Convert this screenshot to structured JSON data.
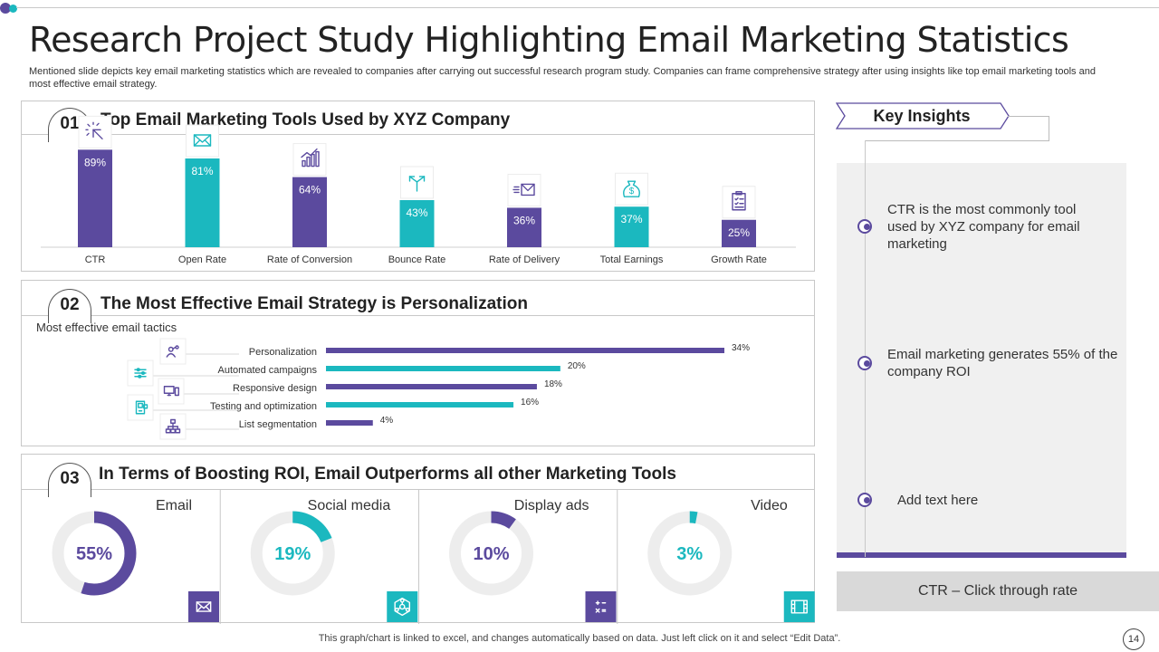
{
  "title": "Research Project Study Highlighting Email Marketing Statistics",
  "subtitle": "Mentioned slide depicts key email marketing statistics which are revealed to companies after carrying out successful research program study. Companies can frame comprehensive strategy after using insights like top email marketing tools and most effective email strategy.",
  "colors": {
    "purple": "#5b4a9e",
    "teal": "#1bb8bf",
    "ring_track": "#ededed"
  },
  "panel1": {
    "num": "01",
    "title": "Top Email Marketing Tools Used by XYZ Company"
  },
  "panel2": {
    "num": "02",
    "title": "The Most Effective Email Strategy is Personalization",
    "subtitle": "Most effective email tactics"
  },
  "panel3": {
    "num": "03",
    "title": "In Terms of Boosting ROI, Email Outperforms all other Marketing Tools"
  },
  "chart_data": [
    {
      "type": "bar",
      "title": "Top Email Marketing Tools Used by XYZ Company",
      "categories": [
        "CTR",
        "Open Rate",
        "Rate of Conversion",
        "Bounce Rate",
        "Rate of Delivery",
        "Total Earnings",
        "Growth Rate"
      ],
      "values": [
        89,
        81,
        64,
        43,
        36,
        37,
        25
      ],
      "labels": [
        "89%",
        "81%",
        "64%",
        "43%",
        "36%",
        "37%",
        "25%"
      ],
      "icons": [
        "cursor-click-icon",
        "envelope-icon",
        "bar-growth-icon",
        "split-arrows-icon",
        "fast-mail-icon",
        "money-bag-icon",
        "checklist-icon"
      ],
      "bar_colors": [
        "#5b4a9e",
        "#1bb8bf",
        "#5b4a9e",
        "#1bb8bf",
        "#5b4a9e",
        "#1bb8bf",
        "#5b4a9e"
      ],
      "ylim": [
        0,
        100
      ]
    },
    {
      "type": "bar",
      "orientation": "horizontal",
      "title": "Most effective email tactics",
      "categories": [
        "Personalization",
        "Automated campaigns",
        "Responsive design",
        "Testing and optimization",
        "List segmentation"
      ],
      "values": [
        34,
        20,
        18,
        16,
        4
      ],
      "labels": [
        "34%",
        "20%",
        "18%",
        "16%",
        "4%"
      ],
      "icons": [
        "person-share-icon",
        "sliders-icon",
        "devices-icon",
        "mobile-apps-icon",
        "hierarchy-icon"
      ],
      "bar_colors": [
        "#5b4a9e",
        "#1bb8bf",
        "#5b4a9e",
        "#1bb8bf",
        "#5b4a9e"
      ],
      "xlim": [
        0,
        34
      ]
    },
    {
      "type": "pie",
      "style": "donut",
      "title": "In Terms of Boosting ROI, Email Outperforms all other Marketing Tools",
      "categories": [
        "Email",
        "Social media",
        "Display ads",
        "Video"
      ],
      "values": [
        55,
        19,
        10,
        3
      ],
      "labels": [
        "55%",
        "19%",
        "10%",
        "3%"
      ],
      "icons": [
        "envelope-icon",
        "network-icon",
        "calculator-icon",
        "film-icon"
      ],
      "colors": [
        "#5b4a9e",
        "#1bb8bf",
        "#5b4a9e",
        "#1bb8bf"
      ]
    }
  ],
  "insights": {
    "tab_label": "Key Insights",
    "items": [
      "CTR is the most commonly tool used by XYZ company for email marketing",
      "Email marketing generates 55% of the company ROI",
      "Add text here"
    ],
    "note": "CTR – Click through rate"
  },
  "footer": "This graph/chart is linked to excel,  and changes automatically based on data. Just left click on it and select “Edit Data”.",
  "page_number": "14"
}
